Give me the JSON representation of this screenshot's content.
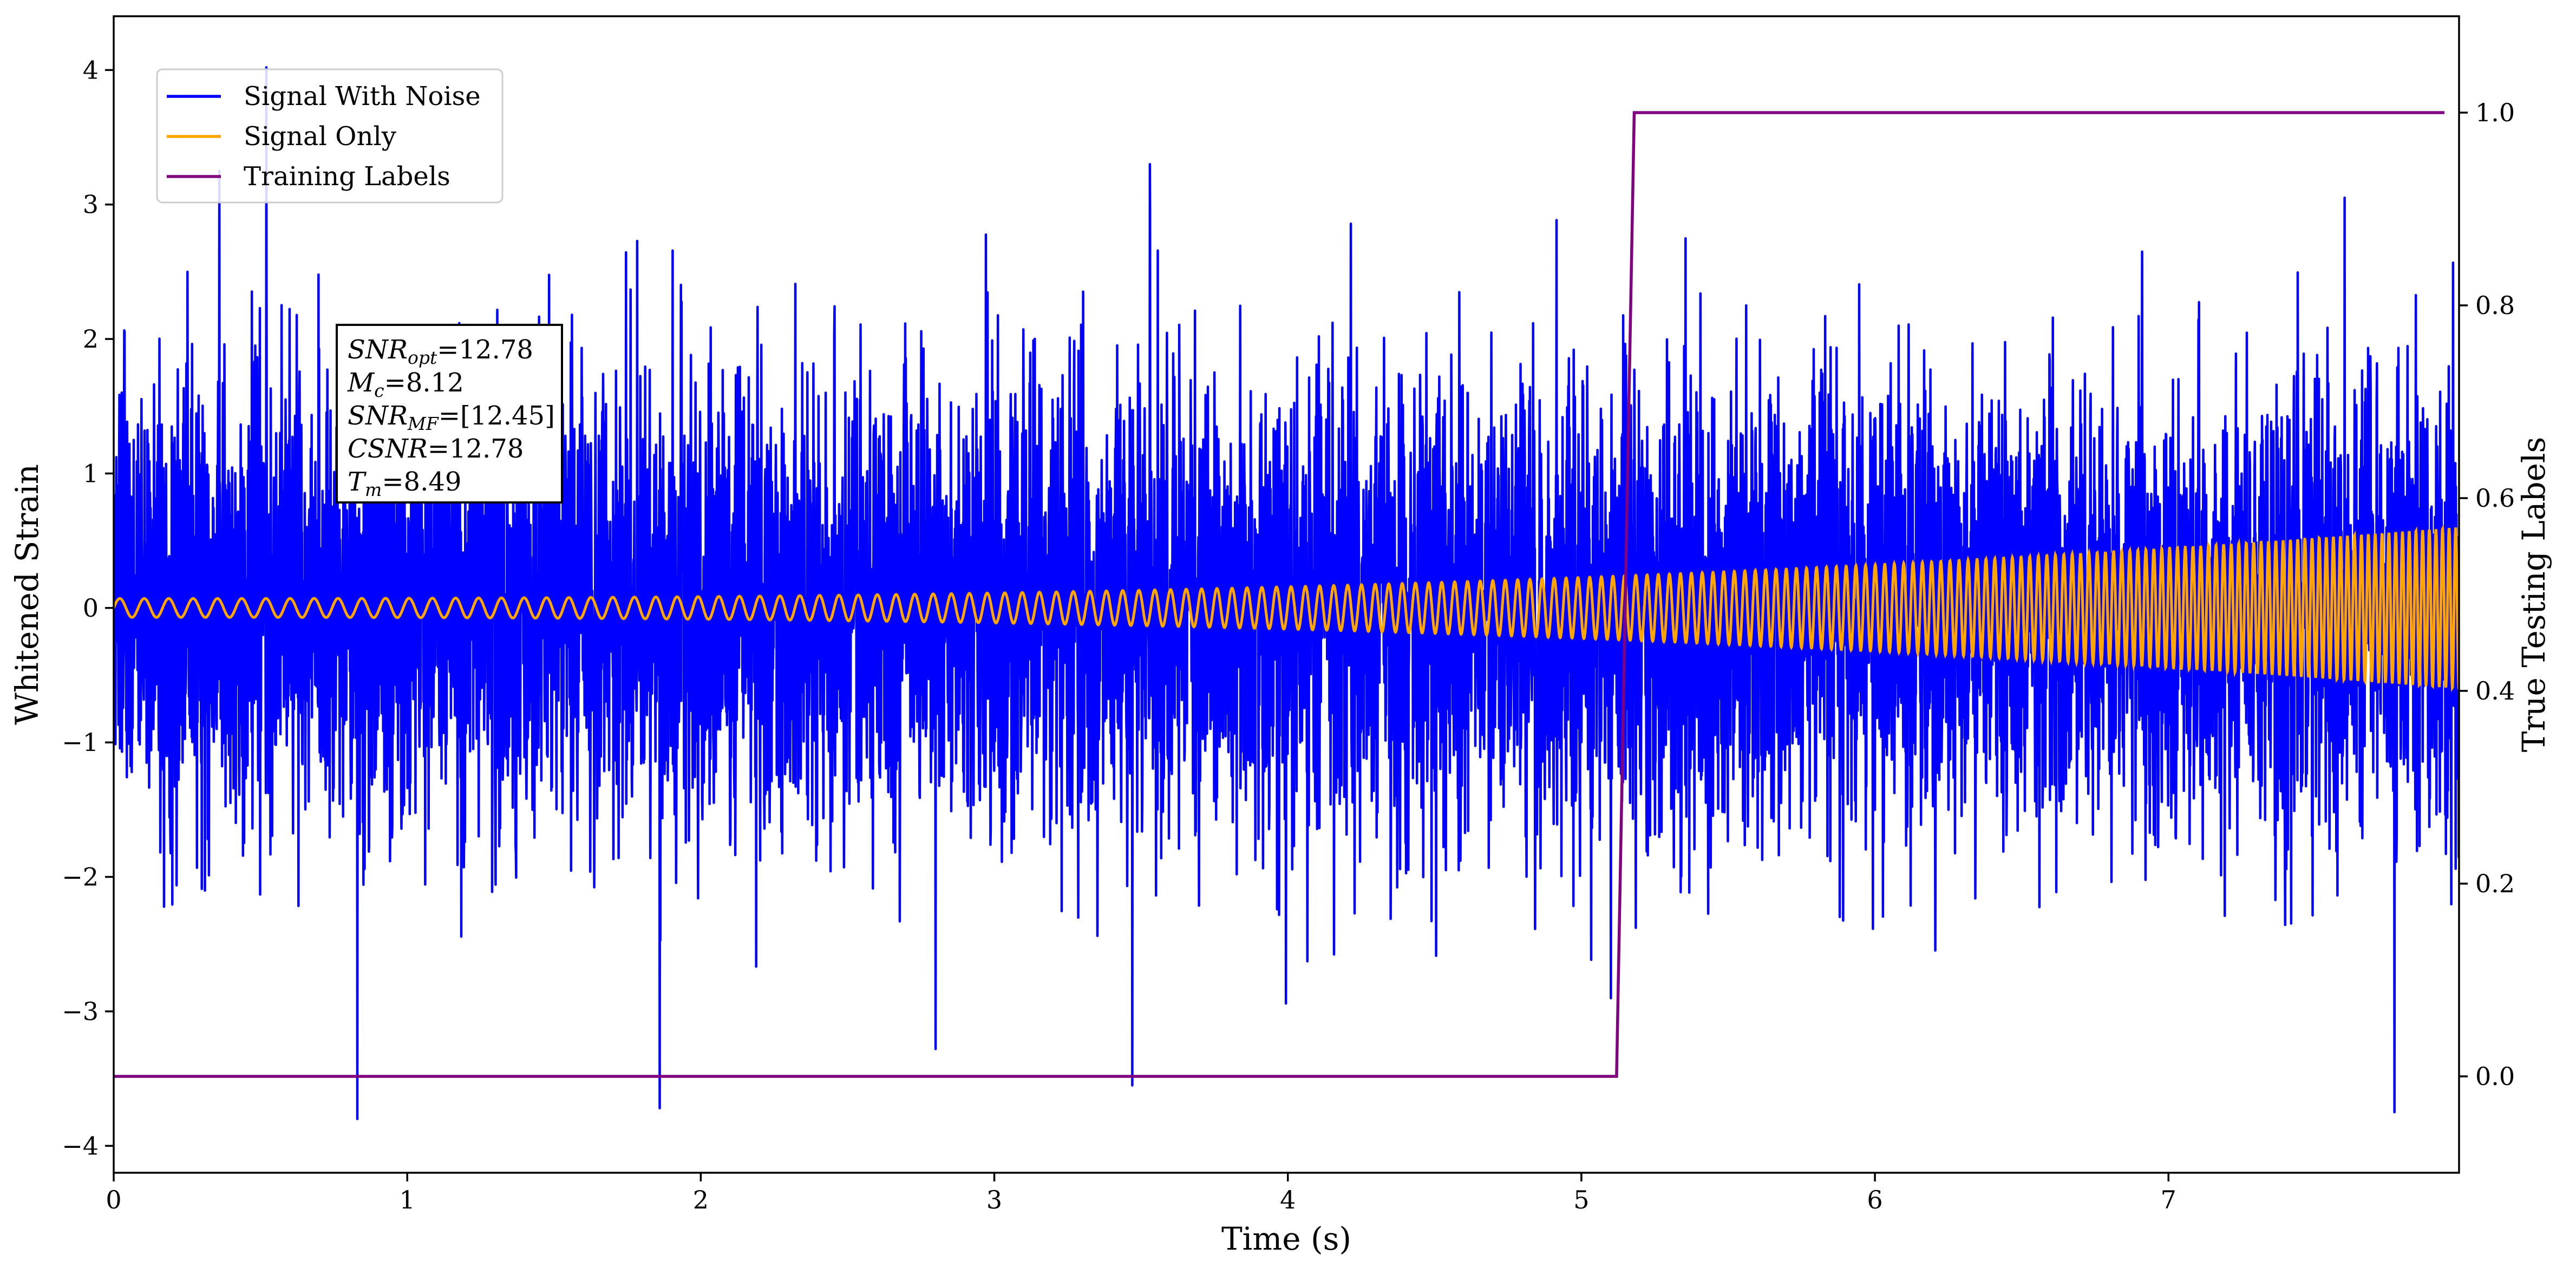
{
  "chart_data": {
    "type": "line",
    "xlabel": "Time (s)",
    "ylabel": "Whitened Strain",
    "ylabel_right": "True Testing Labels",
    "xlim": [
      0,
      7.99
    ],
    "ylim": [
      -4.2,
      4.4
    ],
    "ylim_right": [
      -0.1,
      1.1
    ],
    "x_ticks": [
      0,
      1,
      2,
      3,
      4,
      5,
      6,
      7
    ],
    "x_tick_labels": [
      "0",
      "1",
      "2",
      "3",
      "4",
      "5",
      "6",
      "7"
    ],
    "y_ticks": [
      -4,
      -3,
      -2,
      -1,
      0,
      1,
      2,
      3,
      4
    ],
    "y_tick_labels": [
      "−4",
      "−3",
      "−2",
      "−1",
      "0",
      "1",
      "2",
      "3",
      "4"
    ],
    "y_right_ticks": [
      0.0,
      0.2,
      0.4,
      0.6,
      0.8,
      1.0
    ],
    "y_right_tick_labels": [
      "0.0",
      "0.2",
      "0.4",
      "0.6",
      "0.8",
      "1.0"
    ],
    "grid": false,
    "legend": {
      "placement": "top-left",
      "entries": [
        {
          "name": "Signal With Noise",
          "color": "#0000ff"
        },
        {
          "name": "Signal Only",
          "color": "#ffa500"
        },
        {
          "name": "Training Labels",
          "color": "#800080"
        }
      ]
    },
    "series": [
      {
        "name": "Signal With Noise",
        "color": "#0000ff",
        "axis": "left",
        "kind": "noise",
        "x_range": [
          0,
          7.99
        ],
        "std": 0.85,
        "peaks": [
          {
            "x": 0.52,
            "y": 4.02
          },
          {
            "x": 0.83,
            "y": -3.8
          },
          {
            "x": 1.86,
            "y": -3.72
          },
          {
            "x": 3.47,
            "y": -3.55
          },
          {
            "x": 3.53,
            "y": 3.3
          },
          {
            "x": 7.77,
            "y": -3.75
          },
          {
            "x": 0.36,
            "y": 3.25
          },
          {
            "x": 2.8,
            "y": -3.28
          },
          {
            "x": 7.6,
            "y": 3.05
          }
        ]
      },
      {
        "name": "Signal Only",
        "color": "#ffa500",
        "axis": "left",
        "kind": "chirp",
        "x_range": [
          0,
          7.99
        ],
        "amplitude_start": 0.07,
        "amplitude_end": 0.6,
        "frequency_start_hz": 12,
        "frequency_end_hz": 45
      },
      {
        "name": "Training Labels",
        "color": "#800080",
        "axis": "right",
        "x": [
          0.0,
          5.12,
          5.18,
          7.94
        ],
        "y": [
          0.0,
          0.0,
          1.0,
          1.0
        ]
      }
    ],
    "annotation": {
      "lines": [
        {
          "var": "SNR",
          "sub": "opt",
          "value": "=12.78"
        },
        {
          "var": "M",
          "sub": "c",
          "value": "=8.12"
        },
        {
          "var": "SNR",
          "sub": "MF",
          "value": "=[12.45]"
        },
        {
          "var": "CSNR",
          "sub": "",
          "value": "=12.78"
        },
        {
          "var": "T",
          "sub": "m",
          "value": "=8.49"
        }
      ]
    }
  }
}
